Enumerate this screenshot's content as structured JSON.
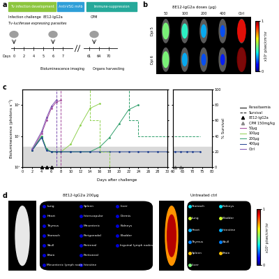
{
  "panel_a": {
    "letter": "a",
    "phases": [
      "Tv infection development",
      "Anti-VSG mAb",
      "Immune-suppression"
    ],
    "infection_label": "Infection challenge",
    "parasite_label": "Tv-luciferase expressing parasites",
    "mab_label": "8E12-IgG2a",
    "cpm_label": "CPM",
    "imaging_label": "Bioluminescence imaging",
    "harvest_label": "Organs harvesting",
    "days_label": "Days",
    "days": [
      0,
      2,
      4,
      5,
      6,
      7,
      61,
      64,
      70
    ]
  },
  "panel_b": {
    "letter": "b",
    "title": "8E12-IgG2a doses (µg)",
    "groups": [
      "50",
      "100",
      "200",
      "400",
      "Ctrl"
    ],
    "rows": [
      {
        "label": "Dpi 5",
        "signal": [
          0.5,
          0.4,
          0.3,
          0.2,
          0.9
        ]
      },
      {
        "label": "Dpi 6",
        "signal": [
          0.5,
          0.3,
          0.2,
          0.15,
          1
        ]
      }
    ],
    "colorbar": {
      "label": "x10⁶ p/sec/cm²/sr",
      "lim": [
        0,
        1
      ],
      "ticks": [
        0,
        1
      ]
    }
  },
  "chart_data": {
    "type": "line",
    "panel_label": "c",
    "x_label": "Days after challenge",
    "y_label": "Bioluminescence (photons s⁻¹)",
    "y2_label": "% Survival",
    "x": [
      0,
      2,
      4,
      5,
      6,
      7,
      8,
      10,
      12,
      14,
      16,
      18,
      20,
      22,
      24,
      26,
      28,
      30,
      61,
      64,
      67,
      70,
      74
    ],
    "xlim": [
      0,
      80
    ],
    "x_break": [
      30,
      60
    ],
    "xticks": [
      0,
      2,
      4,
      6,
      8,
      10,
      12,
      14,
      16,
      18,
      20,
      22,
      24,
      26,
      28,
      30,
      60,
      65,
      70,
      75,
      80
    ],
    "log": "y",
    "ylim": [
      100000.0,
      10000000000.0
    ],
    "yticks": [
      {
        "value": 100000.0,
        "label": "10⁵"
      },
      {
        "value": 10000000.0,
        "label": "10⁷"
      },
      {
        "value": 1000000000.0,
        "label": "10⁹"
      }
    ],
    "y2lim": [
      0,
      100
    ],
    "y2ticks": [
      0,
      20,
      40,
      60,
      80,
      100
    ],
    "legend": "center right",
    "line_entries": {
      "parasitaemia": "Parasitaemia",
      "survival": "Survival"
    },
    "background_band": [
      100000.0,
      2000000.0
    ],
    "treatments": [
      {
        "name": "8E12-IgG2a",
        "days": [
          4,
          5,
          6
        ],
        "color": "#000000",
        "marker": "triangle"
      },
      {
        "name": "CPM 150mg/kg",
        "days": [
          61,
          64
        ],
        "color": "#888888",
        "marker": "triangle"
      }
    ],
    "series": [
      {
        "name": "50µg",
        "color": "#a2469a",
        "values": [
          null,
          1200000.0,
          15000000.0,
          100000000.0,
          600000000.0,
          1500000000.0,
          2000000000.0,
          null,
          null,
          null,
          null,
          null,
          null,
          null,
          null,
          null,
          null,
          null,
          null,
          null,
          null,
          null,
          null
        ],
        "survival": [
          100,
          100,
          100,
          100,
          100,
          100,
          0,
          null,
          null,
          null,
          null,
          null,
          null,
          null,
          null,
          null,
          null,
          null,
          null,
          null,
          null,
          null,
          null
        ]
      },
      {
        "name": "100µg",
        "color": "#8fd14f",
        "values": [
          null,
          1200000.0,
          10000000.0,
          1500000.0,
          1000000.0,
          1000000.0,
          1000000.0,
          3000000.0,
          50000000.0,
          600000000.0,
          1200000000.0,
          null,
          null,
          null,
          null,
          null,
          null,
          null,
          null,
          null,
          null,
          null,
          null
        ],
        "survival": [
          100,
          100,
          100,
          100,
          100,
          100,
          100,
          100,
          100,
          60,
          20,
          0,
          null,
          null,
          null,
          null,
          null,
          null,
          null,
          null,
          null,
          null,
          null
        ]
      },
      {
        "name": "200µg",
        "color": "#2e9e6a",
        "values": [
          null,
          1200000.0,
          10000000.0,
          1500000.0,
          1000000.0,
          1000000.0,
          1000000.0,
          1000000.0,
          1000000.0,
          1000000.0,
          2000000.0,
          8000000.0,
          60000000.0,
          500000000.0,
          1000000000.0,
          null,
          null,
          null,
          null,
          null,
          null,
          null,
          null
        ],
        "survival": [
          100,
          100,
          100,
          100,
          100,
          100,
          100,
          100,
          100,
          100,
          100,
          100,
          100,
          60,
          40,
          40,
          40,
          40,
          40,
          40,
          40,
          40,
          40
        ]
      },
      {
        "name": "400µg",
        "color": "#1f3f8f",
        "values": [
          null,
          1200000.0,
          8000000.0,
          1200000.0,
          1000000.0,
          1000000.0,
          1000000.0,
          1000000.0,
          1000000.0,
          1000000.0,
          1000000.0,
          1000000.0,
          1000000.0,
          1000000.0,
          1000000.0,
          1000000.0,
          1000000.0,
          1000000.0,
          1000000.0,
          1000000.0,
          1000000.0,
          1000000.0,
          1000000.0
        ],
        "survival": [
          100,
          100,
          100,
          100,
          100,
          100,
          100,
          100,
          100,
          100,
          100,
          100,
          100,
          100,
          100,
          100,
          100,
          100,
          100,
          100,
          100,
          100,
          100
        ]
      },
      {
        "name": "Ctrl",
        "color": "#7b4fb0",
        "values": [
          null,
          1500000.0,
          20000000.0,
          150000000.0,
          800000000.0,
          2000000000.0,
          null,
          null,
          null,
          null,
          null,
          null,
          null,
          null,
          null,
          null,
          null,
          null,
          null,
          null,
          null,
          null,
          null
        ],
        "survival": [
          100,
          100,
          100,
          100,
          100,
          0,
          null,
          null,
          null,
          null,
          null,
          null,
          null,
          null,
          null,
          null,
          null,
          null,
          null,
          null,
          null,
          null,
          null
        ]
      }
    ]
  },
  "panel_d": {
    "letter": "d",
    "treated": {
      "title": "8E12-IgG2a 200µg",
      "organs": [
        "Lung",
        "Heart",
        "Thymus",
        "Stomach",
        "Skull",
        "Brain",
        "Mesenteric lymph node",
        "Spleen",
        "Interscapular",
        "Mesenteric",
        "Perigonadal",
        "Perirenal",
        "Peritoneal",
        "Intestine",
        "Liver",
        "Dermis",
        "Kidneys",
        "Bladder",
        "Inguinal lymph nodes"
      ]
    },
    "control": {
      "title": "Untreated ctrl",
      "organs": [
        "Stomach",
        "Lung",
        "Heart",
        "Thymus",
        "Spleen",
        "Liver",
        "Kidneys",
        "Bladder",
        "Intestine",
        "Skull",
        "Brain"
      ]
    },
    "colorbar": {
      "label": "x10⁶ p/sec/cm²/sr",
      "lim": [
        0,
        1
      ],
      "ticks": [
        0,
        1
      ]
    }
  }
}
